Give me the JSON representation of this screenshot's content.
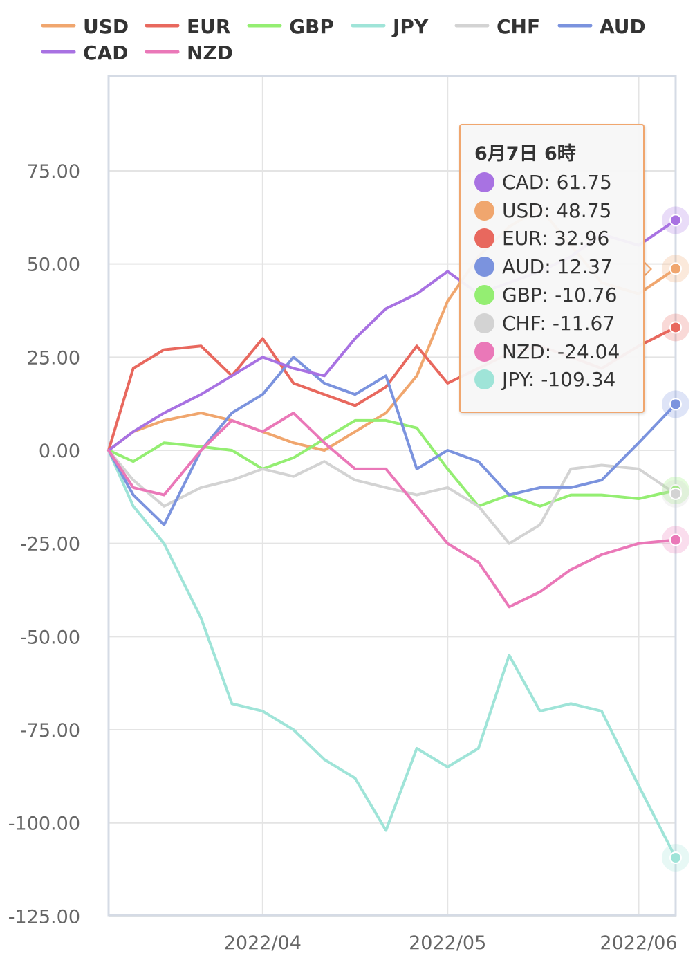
{
  "chart_data": {
    "type": "line",
    "ylim": [
      -125,
      100
    ],
    "yticks": [
      "75.00",
      "50.00",
      "25.00",
      "0.00",
      "-25.00",
      "-50.00",
      "-75.00",
      "-100.00",
      "-125.00"
    ],
    "ytick_values": [
      75,
      50,
      25,
      0,
      -25,
      -50,
      -75,
      -100,
      -125
    ],
    "x_start": "2022-03-07",
    "x_end": "2022-06-07",
    "xticks": [
      {
        "label": "2022/04",
        "date": "2022-04-01"
      },
      {
        "label": "2022/05",
        "date": "2022-05-01"
      },
      {
        "label": "2022/06",
        "date": "2022-06-01"
      }
    ],
    "legend_position": "top",
    "grid": true,
    "series": [
      {
        "name": "USD",
        "color": "#f0a66e",
        "x": [
          "2022-03-07",
          "2022-03-11",
          "2022-03-16",
          "2022-03-22",
          "2022-03-27",
          "2022-04-01",
          "2022-04-06",
          "2022-04-11",
          "2022-04-16",
          "2022-04-21",
          "2022-04-26",
          "2022-05-01",
          "2022-05-06",
          "2022-05-11",
          "2022-05-16",
          "2022-05-21",
          "2022-05-26",
          "2022-06-01",
          "2022-06-07"
        ],
        "values": [
          0,
          5,
          8,
          10,
          8,
          5,
          2,
          0,
          5,
          10,
          20,
          40,
          52,
          60,
          65,
          55,
          45,
          42,
          48.75
        ]
      },
      {
        "name": "EUR",
        "color": "#e8685e",
        "x": [
          "2022-03-07",
          "2022-03-11",
          "2022-03-16",
          "2022-03-22",
          "2022-03-27",
          "2022-04-01",
          "2022-04-06",
          "2022-04-11",
          "2022-04-16",
          "2022-04-21",
          "2022-04-26",
          "2022-05-01",
          "2022-05-06",
          "2022-05-11",
          "2022-05-16",
          "2022-05-21",
          "2022-05-26",
          "2022-06-01",
          "2022-06-07"
        ],
        "values": [
          0,
          22,
          27,
          28,
          20,
          30,
          18,
          15,
          12,
          17,
          28,
          18,
          22,
          26,
          28,
          25,
          22,
          28,
          32.96
        ]
      },
      {
        "name": "GBP",
        "color": "#94ee72",
        "x": [
          "2022-03-07",
          "2022-03-11",
          "2022-03-16",
          "2022-03-22",
          "2022-03-27",
          "2022-04-01",
          "2022-04-06",
          "2022-04-11",
          "2022-04-16",
          "2022-04-21",
          "2022-04-26",
          "2022-05-01",
          "2022-05-06",
          "2022-05-11",
          "2022-05-16",
          "2022-05-21",
          "2022-05-26",
          "2022-06-01",
          "2022-06-07"
        ],
        "values": [
          0,
          -3,
          2,
          1,
          0,
          -5,
          -2,
          3,
          8,
          8,
          6,
          -5,
          -15,
          -12,
          -15,
          -12,
          -12,
          -13,
          -10.76
        ]
      },
      {
        "name": "JPY",
        "color": "#9fe4d8",
        "x": [
          "2022-03-07",
          "2022-03-11",
          "2022-03-16",
          "2022-03-22",
          "2022-03-27",
          "2022-04-01",
          "2022-04-06",
          "2022-04-11",
          "2022-04-16",
          "2022-04-21",
          "2022-04-26",
          "2022-05-01",
          "2022-05-06",
          "2022-05-11",
          "2022-05-16",
          "2022-05-21",
          "2022-05-26",
          "2022-06-01",
          "2022-06-07"
        ],
        "values": [
          0,
          -15,
          -25,
          -45,
          -68,
          -70,
          -75,
          -83,
          -88,
          -102,
          -80,
          -85,
          -80,
          -55,
          -70,
          -68,
          -70,
          -90,
          -109.34
        ]
      },
      {
        "name": "CHF",
        "color": "#d3d3d3",
        "x": [
          "2022-03-07",
          "2022-03-11",
          "2022-03-16",
          "2022-03-22",
          "2022-03-27",
          "2022-04-01",
          "2022-04-06",
          "2022-04-11",
          "2022-04-16",
          "2022-04-21",
          "2022-04-26",
          "2022-05-01",
          "2022-05-06",
          "2022-05-11",
          "2022-05-16",
          "2022-05-21",
          "2022-05-26",
          "2022-06-01",
          "2022-06-07"
        ],
        "values": [
          0,
          -8,
          -15,
          -10,
          -8,
          -5,
          -7,
          -3,
          -8,
          -10,
          -12,
          -10,
          -15,
          -25,
          -20,
          -5,
          -4,
          -5,
          -11.67
        ]
      },
      {
        "name": "AUD",
        "color": "#7b93de",
        "x": [
          "2022-03-07",
          "2022-03-11",
          "2022-03-16",
          "2022-03-22",
          "2022-03-27",
          "2022-04-01",
          "2022-04-06",
          "2022-04-11",
          "2022-04-16",
          "2022-04-21",
          "2022-04-26",
          "2022-05-01",
          "2022-05-06",
          "2022-05-11",
          "2022-05-16",
          "2022-05-21",
          "2022-05-26",
          "2022-06-01",
          "2022-06-07"
        ],
        "values": [
          0,
          -12,
          -20,
          0,
          10,
          15,
          25,
          18,
          15,
          20,
          -5,
          0,
          -3,
          -12,
          -10,
          -10,
          -8,
          2,
          12.37
        ]
      },
      {
        "name": "CAD",
        "color": "#a872e2",
        "x": [
          "2022-03-07",
          "2022-03-11",
          "2022-03-16",
          "2022-03-22",
          "2022-03-27",
          "2022-04-01",
          "2022-04-06",
          "2022-04-11",
          "2022-04-16",
          "2022-04-21",
          "2022-04-26",
          "2022-05-01",
          "2022-05-06",
          "2022-05-11",
          "2022-05-16",
          "2022-05-21",
          "2022-05-26",
          "2022-06-01",
          "2022-06-07"
        ],
        "values": [
          0,
          5,
          10,
          15,
          20,
          25,
          22,
          20,
          30,
          38,
          42,
          48,
          42,
          45,
          48,
          52,
          58,
          55,
          61.75
        ]
      },
      {
        "name": "NZD",
        "color": "#ea78b8",
        "x": [
          "2022-03-07",
          "2022-03-11",
          "2022-03-16",
          "2022-03-22",
          "2022-03-27",
          "2022-04-01",
          "2022-04-06",
          "2022-04-11",
          "2022-04-16",
          "2022-04-21",
          "2022-04-26",
          "2022-05-01",
          "2022-05-06",
          "2022-05-11",
          "2022-05-16",
          "2022-05-21",
          "2022-05-26",
          "2022-06-01",
          "2022-06-07"
        ],
        "values": [
          0,
          -10,
          -12,
          0,
          8,
          5,
          10,
          2,
          -5,
          -5,
          -15,
          -25,
          -30,
          -42,
          -38,
          -32,
          -28,
          -25,
          -24.04
        ]
      }
    ]
  },
  "tooltip": {
    "title": "6月7日 6時",
    "rows": [
      {
        "label": "CAD: 61.75",
        "color": "#a872e2"
      },
      {
        "label": "USD: 48.75",
        "color": "#f0a66e"
      },
      {
        "label": "EUR: 32.96",
        "color": "#e8685e"
      },
      {
        "label": "AUD: 12.37",
        "color": "#7b93de"
      },
      {
        "label": "GBP: -10.76",
        "color": "#94ee72"
      },
      {
        "label": "CHF: -11.67",
        "color": "#d3d3d3"
      },
      {
        "label": "NZD: -24.04",
        "color": "#ea78b8"
      },
      {
        "label": "JPY: -109.34",
        "color": "#9fe4d8"
      }
    ]
  }
}
